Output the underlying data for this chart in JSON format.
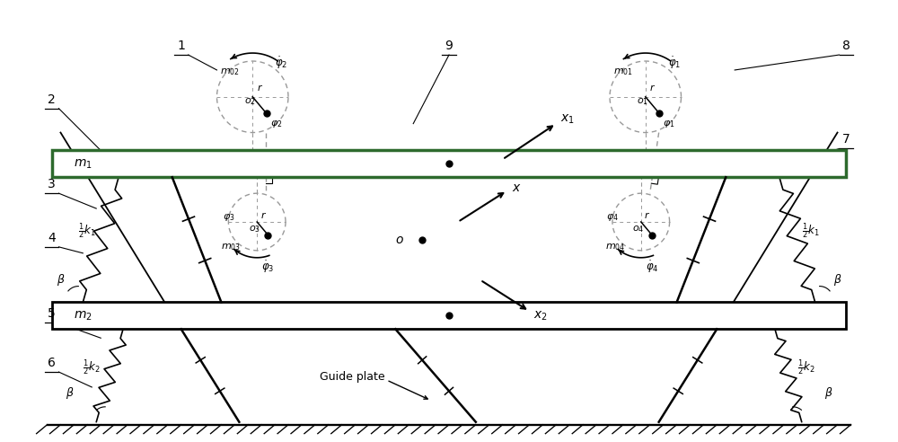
{
  "fig_width": 10.0,
  "fig_height": 4.92,
  "bg_color": "#ffffff",
  "line_color": "#000000",
  "green_color": "#2d6a2d",
  "dash_color": "#999999"
}
